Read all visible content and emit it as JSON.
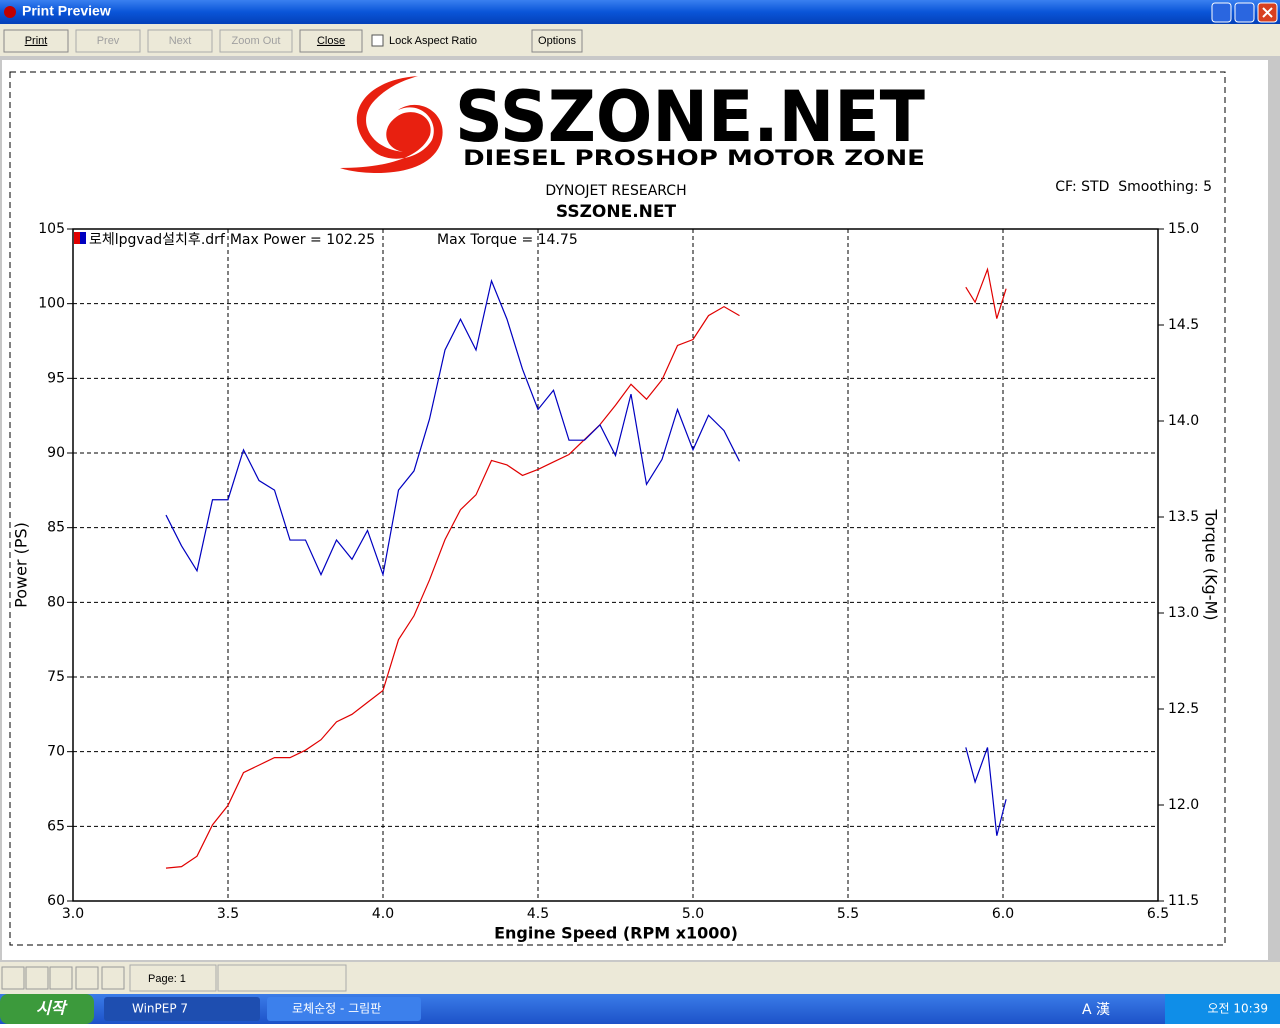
{
  "window": {
    "title": "Print Preview"
  },
  "toolbar": {
    "buttons": [
      "Print",
      "Prev",
      "Next",
      "Zoom Out",
      "Close"
    ],
    "checkbox": "Lock Aspect Ratio",
    "options": "Options"
  },
  "logo": {
    "name": "SSZONE.NET",
    "tagline": "DIESEL PROSHOP MOTOR ZONE"
  },
  "chart_data": {
    "type": "line",
    "title": "SSZONE.NET",
    "subtitle": "DYNOJET RESEARCH",
    "info": "CF: STD  Smoothing: 5",
    "annotations": [
      "Max Power = 102.25",
      "Max Torque = 14.75"
    ],
    "xlabel": "Engine Speed (RPM x1000)",
    "ylabel": "Power (PS)",
    "y2label": "Torque (Kg-M)",
    "x": [
      3.3,
      3.35,
      3.4,
      3.45,
      3.5,
      3.55,
      3.6,
      3.65,
      3.7,
      3.75,
      3.8,
      3.85,
      3.9,
      3.95,
      4.0,
      4.05,
      4.1,
      4.15,
      4.2,
      4.25,
      4.3,
      4.35,
      4.4,
      4.45,
      4.5,
      4.55,
      4.6,
      4.65,
      4.7,
      4.75,
      4.8,
      4.85,
      4.9,
      4.95,
      5.0,
      5.05,
      5.1,
      5.15,
      5.5,
      5.88,
      5.91,
      5.95,
      5.98,
      6.01
    ],
    "series": [
      {
        "name": "로체lpgvad설치후.drf",
        "color": "#e00000",
        "values": [
          62.2,
          62.3,
          63.0,
          65.1,
          66.4,
          68.6,
          69.1,
          69.6,
          69.6,
          70.1,
          70.8,
          72.0,
          72.5,
          73.3,
          74.1,
          77.5,
          79.1,
          81.5,
          84.2,
          86.2,
          87.2,
          89.5,
          89.2,
          88.5,
          88.9,
          89.4,
          89.9,
          90.9,
          91.9,
          93.2,
          94.6,
          93.6,
          94.9,
          97.2,
          97.6,
          99.2,
          99.8,
          99.2,
          null,
          101.1,
          100.1,
          102.3,
          99.0,
          101.0
        ]
      },
      {
        "color": "#0000c0",
        "axis": "y2",
        "values": [
          13.51,
          13.35,
          13.22,
          13.59,
          13.59,
          13.85,
          13.69,
          13.64,
          13.38,
          13.38,
          13.2,
          13.38,
          13.28,
          13.43,
          13.2,
          13.64,
          13.74,
          14.01,
          14.37,
          14.53,
          14.37,
          14.73,
          14.53,
          14.27,
          14.06,
          14.16,
          13.9,
          13.9,
          13.98,
          13.82,
          14.14,
          13.67,
          13.8,
          14.06,
          13.85,
          14.03,
          13.95,
          13.79,
          null,
          12.3,
          12.12,
          12.3,
          11.84,
          12.03
        ]
      }
    ],
    "xlim": [
      3.0,
      6.5
    ],
    "xticks": [
      {
        "value": 3,
        "label": "3.0"
      },
      3.5,
      {
        "value": 4,
        "label": "4.0"
      },
      4.5,
      {
        "value": 5,
        "label": "5.0"
      },
      5.5,
      {
        "value": 6,
        "label": "6.0"
      },
      6.5
    ],
    "ylim": [
      60,
      105
    ],
    "yticks": [
      60,
      65,
      70,
      75,
      80,
      85,
      90,
      95,
      100,
      105
    ],
    "y2lim": [
      11.5,
      15.0
    ],
    "y2ticks": [
      11.5,
      {
        "value": 12,
        "label": "12.0"
      },
      12.5,
      {
        "value": 13,
        "label": "13.0"
      },
      13.5,
      {
        "value": 14,
        "label": "14.0"
      },
      14.5,
      {
        "value": 15,
        "label": "15.0"
      }
    ],
    "grid": true
  },
  "statusbar": {
    "page": "Page: 1"
  },
  "taskbar": {
    "start": "시작",
    "tasks": [
      "WinPEP 7",
      "로체순정 - 그림판"
    ],
    "ime": "A 漢",
    "clock": "오전 10:39"
  }
}
